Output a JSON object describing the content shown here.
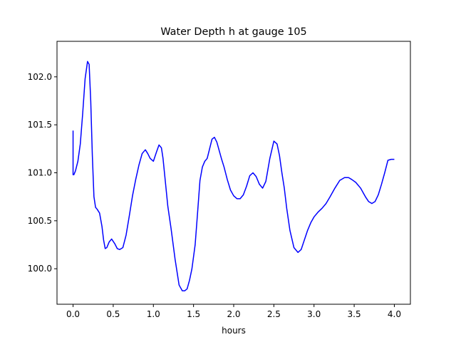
{
  "chart_data": {
    "type": "line",
    "title": "Water Depth h at gauge 105",
    "xlabel": "hours",
    "ylabel": "",
    "xlim": [
      -0.2,
      4.2
    ],
    "ylim": [
      99.63,
      102.37
    ],
    "x_ticks": [
      0.0,
      0.5,
      1.0,
      1.5,
      2.0,
      2.5,
      3.0,
      3.5,
      4.0
    ],
    "x_tick_labels": [
      "0.0",
      "0.5",
      "1.0",
      "1.5",
      "2.0",
      "2.5",
      "3.0",
      "3.5",
      "4.0"
    ],
    "y_ticks": [
      100.0,
      100.5,
      101.0,
      101.5,
      102.0
    ],
    "y_tick_labels": [
      "100.0",
      "100.5",
      "101.0",
      "101.5",
      "102.0"
    ],
    "grid": false,
    "series": [
      {
        "color": "#0000ff",
        "x": [
          0.0,
          0.0,
          0.01,
          0.03,
          0.06,
          0.09,
          0.12,
          0.15,
          0.18,
          0.2,
          0.22,
          0.24,
          0.26,
          0.28,
          0.3,
          0.33,
          0.36,
          0.38,
          0.4,
          0.42,
          0.45,
          0.48,
          0.52,
          0.55,
          0.58,
          0.62,
          0.66,
          0.7,
          0.74,
          0.78,
          0.82,
          0.86,
          0.9,
          0.93,
          0.96,
          1.0,
          1.04,
          1.07,
          1.1,
          1.12,
          1.15,
          1.18,
          1.22,
          1.27,
          1.32,
          1.36,
          1.39,
          1.42,
          1.45,
          1.48,
          1.52,
          1.55,
          1.58,
          1.61,
          1.64,
          1.67,
          1.7,
          1.73,
          1.76,
          1.79,
          1.82,
          1.85,
          1.88,
          1.92,
          1.96,
          2.0,
          2.04,
          2.08,
          2.12,
          2.16,
          2.2,
          2.24,
          2.28,
          2.32,
          2.36,
          2.4,
          2.45,
          2.5,
          2.54,
          2.57,
          2.6,
          2.63,
          2.66,
          2.7,
          2.75,
          2.8,
          2.84,
          2.88,
          2.92,
          2.96,
          3.0,
          3.05,
          3.1,
          3.15,
          3.2,
          3.26,
          3.32,
          3.38,
          3.43,
          3.47,
          3.52,
          3.58,
          3.64,
          3.68,
          3.72,
          3.76,
          3.8,
          3.84,
          3.88,
          3.92,
          3.96,
          4.0
        ],
        "y": [
          101.44,
          100.98,
          100.98,
          101.02,
          101.12,
          101.3,
          101.62,
          101.98,
          102.16,
          102.13,
          101.75,
          101.18,
          100.75,
          100.64,
          100.62,
          100.58,
          100.44,
          100.3,
          100.21,
          100.22,
          100.28,
          100.31,
          100.26,
          100.21,
          100.2,
          100.22,
          100.35,
          100.55,
          100.76,
          100.93,
          101.08,
          101.2,
          101.24,
          101.2,
          101.15,
          101.12,
          101.22,
          101.29,
          101.26,
          101.15,
          100.9,
          100.65,
          100.42,
          100.1,
          99.83,
          99.77,
          99.77,
          99.79,
          99.88,
          100.0,
          100.25,
          100.58,
          100.92,
          101.06,
          101.12,
          101.15,
          101.25,
          101.35,
          101.37,
          101.32,
          101.23,
          101.14,
          101.06,
          100.93,
          100.82,
          100.76,
          100.73,
          100.73,
          100.77,
          100.86,
          100.97,
          101.0,
          100.96,
          100.88,
          100.84,
          100.91,
          101.15,
          101.33,
          101.3,
          101.18,
          101.0,
          100.84,
          100.63,
          100.4,
          100.22,
          100.17,
          100.2,
          100.3,
          100.4,
          100.48,
          100.54,
          100.59,
          100.63,
          100.68,
          100.75,
          100.84,
          100.92,
          100.95,
          100.95,
          100.93,
          100.9,
          100.84,
          100.75,
          100.7,
          100.68,
          100.7,
          100.77,
          100.88,
          101.0,
          101.13,
          101.14,
          101.14
        ]
      }
    ]
  }
}
